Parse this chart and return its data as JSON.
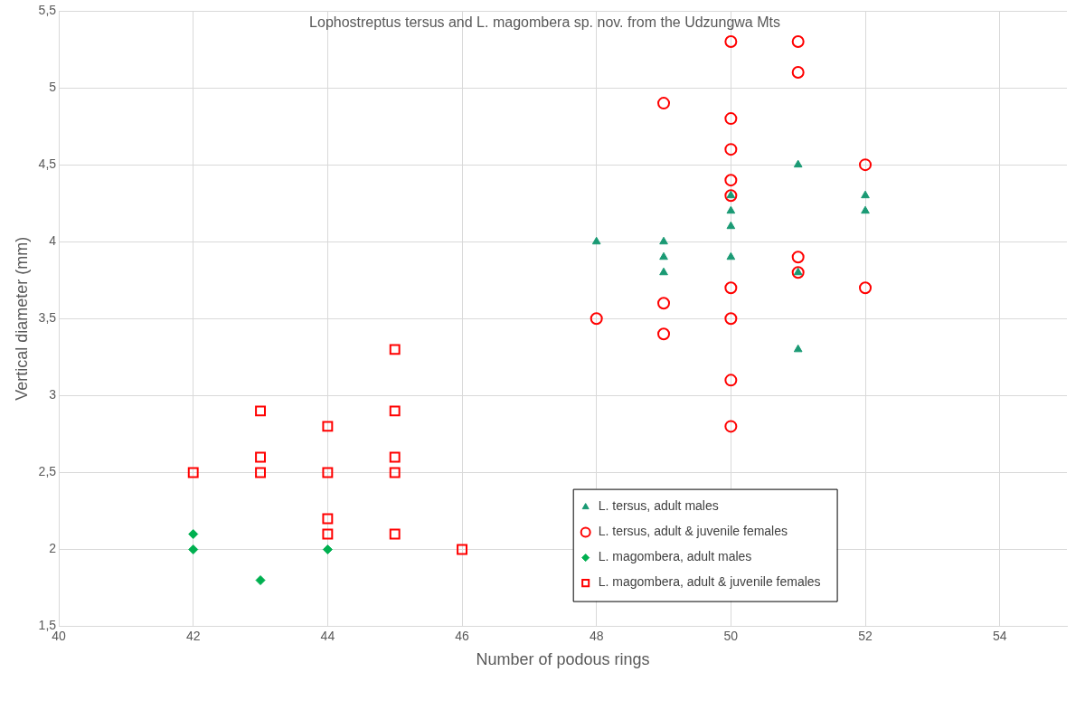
{
  "chart_data": {
    "type": "scatter",
    "title": "Lophostreptus tersus and L. magombera sp. nov. from the Udzungwa Mts",
    "xlabel": "Number of podous rings",
    "ylabel": "Vertical diameter (mm)",
    "xlim": [
      40,
      55
    ],
    "xticks": [
      40,
      42,
      44,
      46,
      48,
      50,
      52,
      54
    ],
    "ylim": [
      1.5,
      5.5
    ],
    "yticks": [
      {
        "value": 1.5,
        "label": "1,5"
      },
      {
        "value": 2,
        "label": "2"
      },
      {
        "value": 2.5,
        "label": "2,5"
      },
      {
        "value": 3,
        "label": "3"
      },
      {
        "value": 3.5,
        "label": "3,5"
      },
      {
        "value": 4,
        "label": "4"
      },
      {
        "value": 4.5,
        "label": "4,5"
      },
      {
        "value": 5,
        "label": "5"
      },
      {
        "value": 5.5,
        "label": "5,5"
      }
    ],
    "grid": true,
    "legend": "bottom right",
    "series": [
      {
        "name": "L. tersus, adult males",
        "color": "#1a9a74",
        "marker": "triangle",
        "x": [
          48,
          49,
          49,
          49,
          50,
          50,
          50,
          50,
          51,
          51,
          51,
          52,
          52
        ],
        "values": [
          4.0,
          4.0,
          3.9,
          3.8,
          4.3,
          4.2,
          4.1,
          3.9,
          4.5,
          3.8,
          3.3,
          4.3,
          4.2
        ]
      },
      {
        "name": "L. tersus, adult & juvenile females",
        "color": "#ff0000",
        "marker": "circle",
        "x": [
          48,
          49,
          49,
          49,
          50,
          50,
          50,
          50,
          50,
          50,
          50,
          50,
          50,
          51,
          51,
          51,
          51,
          52,
          52
        ],
        "values": [
          3.5,
          4.9,
          3.6,
          3.4,
          5.3,
          4.8,
          4.6,
          4.4,
          4.3,
          3.7,
          3.5,
          3.1,
          2.8,
          5.3,
          5.1,
          3.9,
          3.8,
          4.5,
          3.7
        ]
      },
      {
        "name": "L. magombera, adult males",
        "color": "#00b050",
        "marker": "diamond",
        "x": [
          42,
          42,
          43,
          44
        ],
        "values": [
          2.1,
          2.0,
          1.8,
          2.0
        ]
      },
      {
        "name": "L. magombera, adult & juvenile females",
        "color": "#ff0000",
        "marker": "square",
        "x": [
          42,
          43,
          43,
          43,
          44,
          44,
          44,
          44,
          45,
          45,
          45,
          45,
          45,
          46
        ],
        "values": [
          2.5,
          2.9,
          2.6,
          2.5,
          2.8,
          2.5,
          2.2,
          2.1,
          3.3,
          2.9,
          2.6,
          2.5,
          2.1,
          2.0
        ]
      }
    ]
  }
}
